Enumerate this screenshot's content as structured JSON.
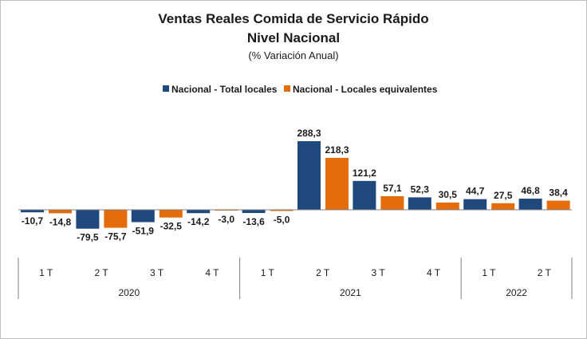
{
  "chart_data": {
    "type": "bar",
    "title": "Ventas Reales Comida de Servicio Rápido",
    "title_line2": "Nivel Nacional",
    "subtitle": "(% Variación Anual)",
    "xlabel": "",
    "ylabel": "",
    "ylim": [
      -100,
      310
    ],
    "grid": false,
    "legend_position": "top-center",
    "quarter_labels": [
      "1 T",
      "2 T",
      "3 T",
      "4 T",
      "1 T",
      "2 T",
      "3 T",
      "4 T",
      "1 T",
      "2 T"
    ],
    "years": [
      {
        "label": "2020",
        "quarters": 4
      },
      {
        "label": "2021",
        "quarters": 4
      },
      {
        "label": "2022",
        "quarters": 2
      }
    ],
    "series": [
      {
        "name": "Nacional - Total locales",
        "color": "#1f497d",
        "values": [
          -10.7,
          -79.5,
          -51.9,
          -14.2,
          -13.6,
          288.3,
          121.2,
          52.3,
          44.7,
          46.8
        ],
        "labels": [
          "-10,7",
          "-79,5",
          "-51,9",
          "-14,2",
          "-13,6",
          "288,3",
          "121,2",
          "52,3",
          "44,7",
          "46,8"
        ]
      },
      {
        "name": "Nacional - Locales equivalentes",
        "color": "#e46c0a",
        "values": [
          -14.8,
          -75.7,
          -32.5,
          -3.0,
          -5.0,
          218.3,
          57.1,
          30.5,
          27.5,
          38.4
        ],
        "labels": [
          "-14,8",
          "-75,7",
          "-32,5",
          "-3,0",
          "-5,0",
          "218,3",
          "57,1",
          "30,5",
          "27,5",
          "38,4"
        ]
      }
    ]
  }
}
